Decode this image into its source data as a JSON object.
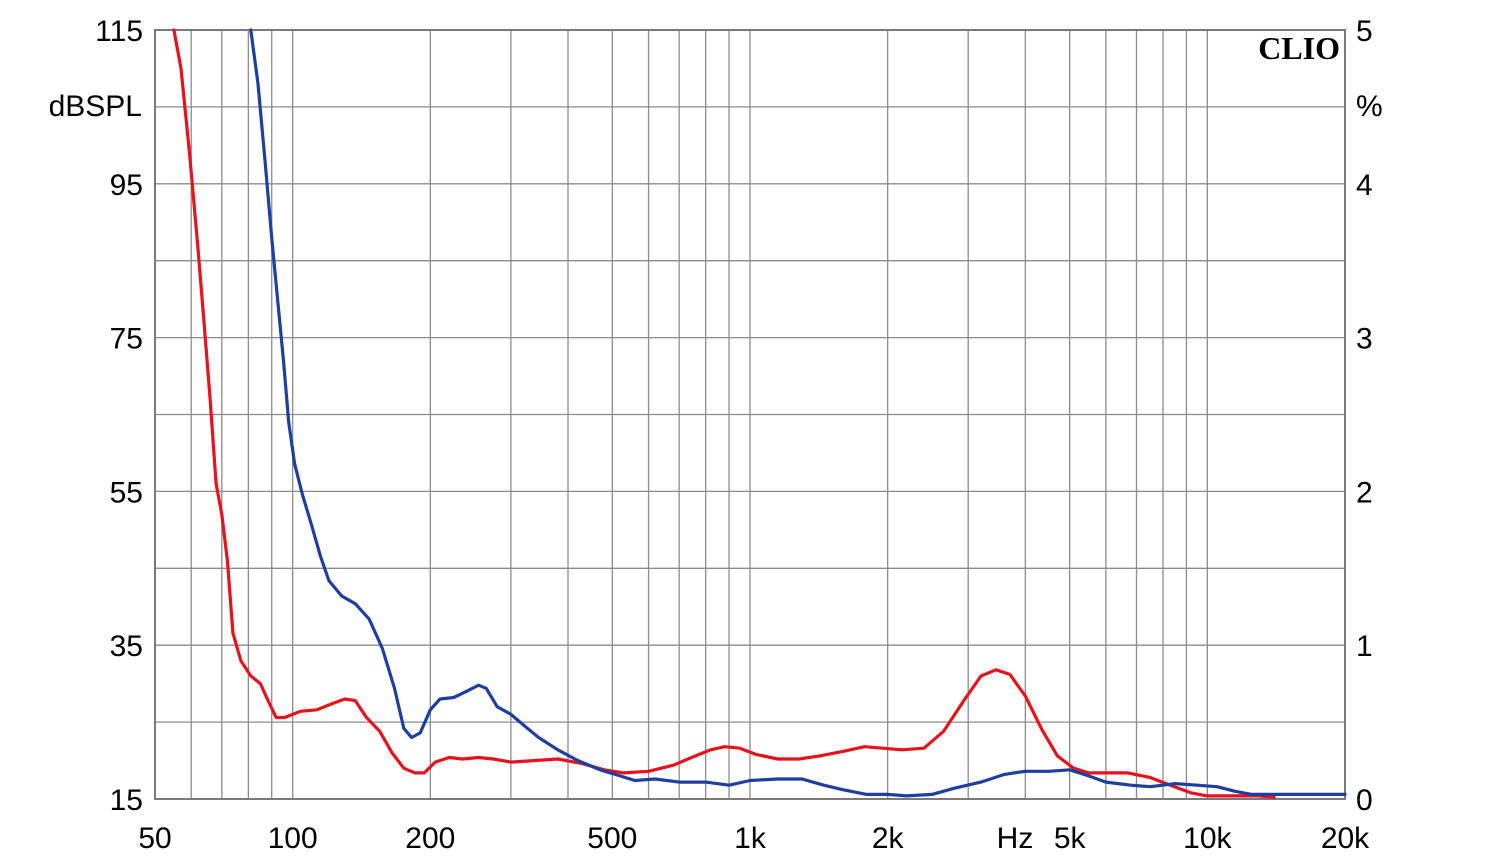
{
  "brand": "CLIO",
  "chart_data": {
    "type": "line",
    "xscale": "log",
    "xlim": [
      50,
      20000
    ],
    "ylim": [
      15,
      115
    ],
    "y2lim": [
      0,
      5
    ],
    "ylabel": "dBSPL",
    "y2label": "%",
    "xunit": "Hz",
    "grid": true,
    "x_ticks": [
      {
        "value": 50,
        "label": "50"
      },
      {
        "value": 100,
        "label": "100"
      },
      {
        "value": 200,
        "label": "200"
      },
      {
        "value": 500,
        "label": "500"
      },
      {
        "value": 1000,
        "label": "1k"
      },
      {
        "value": 2000,
        "label": "2k"
      },
      {
        "value": 5000,
        "label": "5k"
      },
      {
        "value": 10000,
        "label": "10k"
      },
      {
        "value": 20000,
        "label": "20k"
      }
    ],
    "y_ticks": [
      {
        "value": 115,
        "label": "115"
      },
      {
        "value": 95,
        "label": "95"
      },
      {
        "value": 75,
        "label": "75"
      },
      {
        "value": 55,
        "label": "55"
      },
      {
        "value": 35,
        "label": "35"
      },
      {
        "value": 15,
        "label": "15"
      }
    ],
    "y2_ticks": [
      {
        "value": 5,
        "label": "5"
      },
      {
        "value": 4,
        "label": "4"
      },
      {
        "value": 3,
        "label": "3"
      },
      {
        "value": 2,
        "label": "2"
      },
      {
        "value": 1,
        "label": "1"
      },
      {
        "value": 0,
        "label": "0"
      }
    ],
    "series": [
      {
        "color": "#e8121c",
        "axis": "y2",
        "points": [
          [
            55,
            5.0
          ],
          [
            57,
            4.75
          ],
          [
            59.5,
            4.2
          ],
          [
            62,
            3.6
          ],
          [
            64,
            3.1
          ],
          [
            66,
            2.6
          ],
          [
            68,
            2.05
          ],
          [
            70,
            1.85
          ],
          [
            72,
            1.55
          ],
          [
            74,
            1.08
          ],
          [
            77,
            0.9
          ],
          [
            81,
            0.8
          ],
          [
            85,
            0.75
          ],
          [
            88,
            0.65
          ],
          [
            92,
            0.53
          ],
          [
            96,
            0.53
          ],
          [
            104,
            0.57
          ],
          [
            113,
            0.58
          ],
          [
            122,
            0.62
          ],
          [
            130,
            0.65
          ],
          [
            137,
            0.64
          ],
          [
            145,
            0.53
          ],
          [
            155,
            0.44
          ],
          [
            165,
            0.3
          ],
          [
            175,
            0.2
          ],
          [
            185,
            0.17
          ],
          [
            194,
            0.17
          ],
          [
            205,
            0.24
          ],
          [
            220,
            0.27
          ],
          [
            235,
            0.26
          ],
          [
            255,
            0.27
          ],
          [
            275,
            0.26
          ],
          [
            300,
            0.24
          ],
          [
            340,
            0.25
          ],
          [
            380,
            0.26
          ],
          [
            430,
            0.23
          ],
          [
            480,
            0.19
          ],
          [
            530,
            0.17
          ],
          [
            600,
            0.18
          ],
          [
            680,
            0.22
          ],
          [
            760,
            0.28
          ],
          [
            820,
            0.32
          ],
          [
            880,
            0.34
          ],
          [
            950,
            0.33
          ],
          [
            1030,
            0.29
          ],
          [
            1150,
            0.26
          ],
          [
            1280,
            0.26
          ],
          [
            1420,
            0.28
          ],
          [
            1600,
            0.31
          ],
          [
            1780,
            0.34
          ],
          [
            1950,
            0.33
          ],
          [
            2150,
            0.32
          ],
          [
            2400,
            0.33
          ],
          [
            2650,
            0.44
          ],
          [
            2950,
            0.65
          ],
          [
            3200,
            0.8
          ],
          [
            3450,
            0.84
          ],
          [
            3700,
            0.81
          ],
          [
            4000,
            0.67
          ],
          [
            4350,
            0.45
          ],
          [
            4700,
            0.28
          ],
          [
            5100,
            0.2
          ],
          [
            5500,
            0.17
          ],
          [
            6000,
            0.17
          ],
          [
            6700,
            0.17
          ],
          [
            7500,
            0.14
          ],
          [
            8300,
            0.09
          ],
          [
            9200,
            0.04
          ],
          [
            10000,
            0.02
          ],
          [
            11500,
            0.02
          ],
          [
            13000,
            0.02
          ],
          [
            14000,
            0.01
          ]
        ]
      },
      {
        "color": "#1f3f9e",
        "axis": "y2",
        "points": [
          [
            81,
            5.0
          ],
          [
            84,
            4.65
          ],
          [
            87,
            4.15
          ],
          [
            90,
            3.65
          ],
          [
            93,
            3.2
          ],
          [
            95.5,
            2.85
          ],
          [
            98,
            2.45
          ],
          [
            101,
            2.18
          ],
          [
            105,
            1.98
          ],
          [
            110,
            1.78
          ],
          [
            115,
            1.58
          ],
          [
            120,
            1.42
          ],
          [
            128,
            1.32
          ],
          [
            137,
            1.27
          ],
          [
            147,
            1.17
          ],
          [
            157,
            0.98
          ],
          [
            167,
            0.72
          ],
          [
            175,
            0.46
          ],
          [
            182,
            0.4
          ],
          [
            190,
            0.43
          ],
          [
            200,
            0.58
          ],
          [
            210,
            0.65
          ],
          [
            225,
            0.66
          ],
          [
            240,
            0.7
          ],
          [
            255,
            0.74
          ],
          [
            265,
            0.72
          ],
          [
            280,
            0.6
          ],
          [
            300,
            0.55
          ],
          [
            320,
            0.48
          ],
          [
            345,
            0.4
          ],
          [
            380,
            0.32
          ],
          [
            420,
            0.25
          ],
          [
            470,
            0.19
          ],
          [
            520,
            0.15
          ],
          [
            560,
            0.12
          ],
          [
            620,
            0.13
          ],
          [
            700,
            0.11
          ],
          [
            800,
            0.11
          ],
          [
            900,
            0.09
          ],
          [
            1000,
            0.12
          ],
          [
            1150,
            0.13
          ],
          [
            1300,
            0.13
          ],
          [
            1450,
            0.09
          ],
          [
            1600,
            0.06
          ],
          [
            1800,
            0.03
          ],
          [
            2000,
            0.03
          ],
          [
            2200,
            0.02
          ],
          [
            2500,
            0.03
          ],
          [
            2800,
            0.07
          ],
          [
            3200,
            0.11
          ],
          [
            3600,
            0.16
          ],
          [
            4000,
            0.18
          ],
          [
            4500,
            0.18
          ],
          [
            5000,
            0.19
          ],
          [
            5500,
            0.15
          ],
          [
            6000,
            0.11
          ],
          [
            6800,
            0.09
          ],
          [
            7500,
            0.08
          ],
          [
            8500,
            0.1
          ],
          [
            9500,
            0.09
          ],
          [
            10500,
            0.08
          ],
          [
            11500,
            0.05
          ],
          [
            12500,
            0.03
          ],
          [
            15000,
            0.03
          ],
          [
            17500,
            0.03
          ],
          [
            20000,
            0.03
          ]
        ]
      }
    ]
  }
}
